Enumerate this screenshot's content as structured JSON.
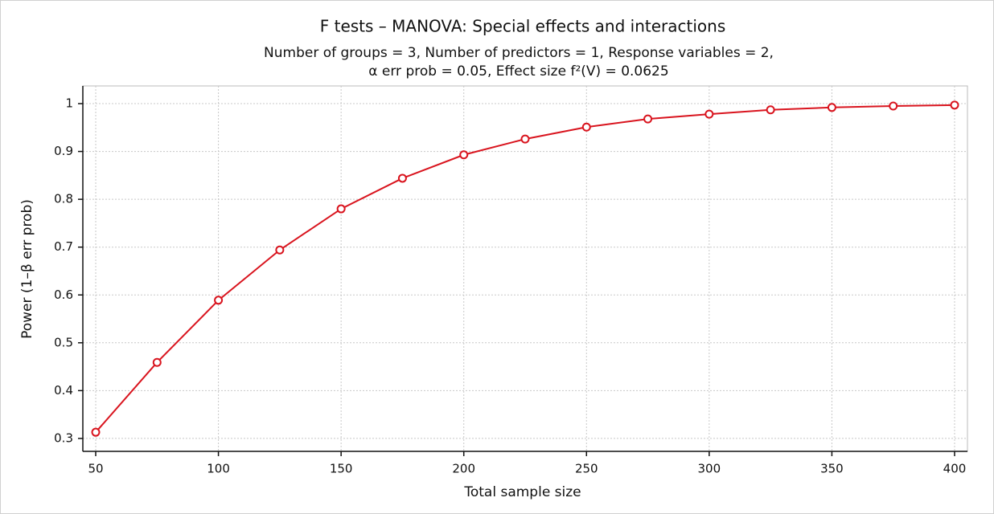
{
  "chart_data": {
    "type": "line",
    "title": "F tests – MANOVA: Special effects and interactions",
    "subtitle": [
      "Number of groups = 3, Number of predictors = 1, Response variables = 2,",
      "α err prob = 0.05, Effect size f²(V) = 0.0625"
    ],
    "xlabel": "Total sample size",
    "ylabel": "Power (1–β err prob)",
    "x": [
      50,
      75,
      100,
      125,
      150,
      175,
      200,
      225,
      250,
      275,
      300,
      325,
      350,
      375,
      400
    ],
    "series": [
      {
        "name": "Power",
        "color": "#d9141e",
        "values": [
          0.313,
          0.459,
          0.589,
          0.694,
          0.78,
          0.844,
          0.893,
          0.926,
          0.951,
          0.968,
          0.978,
          0.987,
          0.992,
          0.995,
          0.997
        ]
      }
    ],
    "xlim": [
      44.75,
      405.25
    ],
    "ylim": [
      0.273,
      1.037
    ],
    "xticks": [
      50,
      100,
      150,
      200,
      250,
      300,
      350,
      400
    ],
    "yticks": [
      0.3,
      0.4,
      0.5,
      0.6,
      0.7,
      0.8,
      0.9,
      1
    ],
    "grid": true
  }
}
